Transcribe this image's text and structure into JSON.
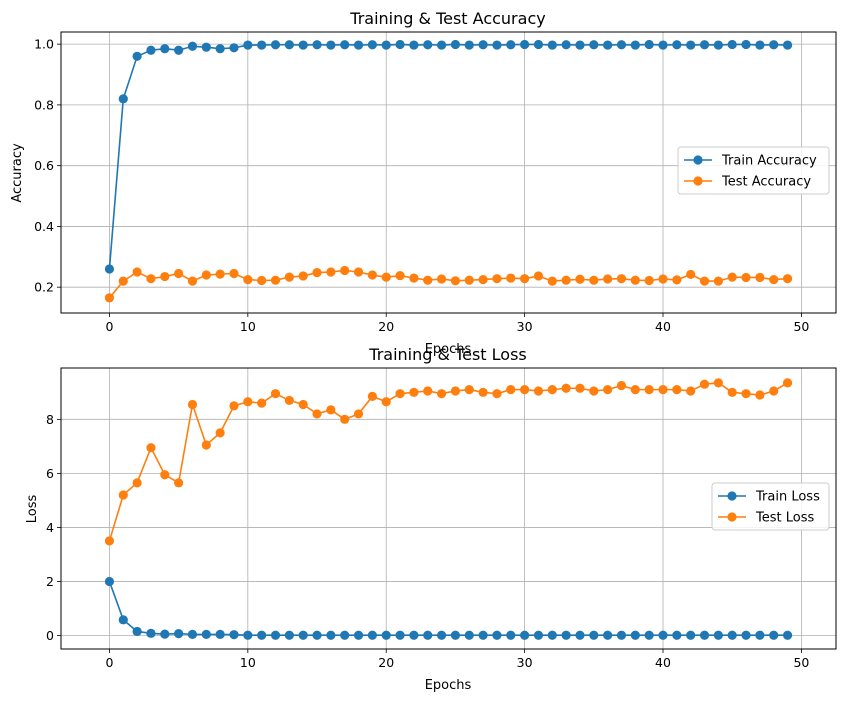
{
  "chart_data": [
    {
      "type": "line",
      "title": "Training & Test Accuracy",
      "xlabel": "Epochs",
      "ylabel": "Accuracy",
      "xlim": [
        -3.5,
        52.5
      ],
      "ylim": [
        0.115,
        1.04
      ],
      "xticks": [
        0,
        10,
        20,
        30,
        40,
        50
      ],
      "yticks": [
        0.2,
        0.4,
        0.6,
        0.8,
        1.0
      ],
      "ytick_labels": [
        "0.2",
        "0.4",
        "0.6",
        "0.8",
        "1.0"
      ],
      "grid": true,
      "legend_position": "center-right",
      "series": [
        {
          "name": "Train Accuracy",
          "color": "#1f77b4",
          "x": [
            0,
            1,
            2,
            3,
            4,
            5,
            6,
            7,
            8,
            9,
            10,
            11,
            12,
            13,
            14,
            15,
            16,
            17,
            18,
            19,
            20,
            21,
            22,
            23,
            24,
            25,
            26,
            27,
            28,
            29,
            30,
            31,
            32,
            33,
            34,
            35,
            36,
            37,
            38,
            39,
            40,
            41,
            42,
            43,
            44,
            45,
            46,
            47,
            48,
            49
          ],
          "values": [
            0.26,
            0.82,
            0.96,
            0.98,
            0.985,
            0.98,
            0.993,
            0.99,
            0.985,
            0.988,
            0.997,
            0.997,
            0.998,
            0.998,
            0.997,
            0.998,
            0.997,
            0.998,
            0.997,
            0.998,
            0.997,
            0.999,
            0.997,
            0.998,
            0.997,
            0.999,
            0.997,
            0.998,
            0.997,
            0.998,
            0.999,
            0.999,
            0.997,
            0.998,
            0.997,
            0.998,
            0.997,
            0.998,
            0.997,
            0.999,
            0.997,
            0.998,
            0.997,
            0.998,
            0.997,
            0.999,
            0.999,
            0.997,
            0.998,
            0.997
          ]
        },
        {
          "name": "Test Accuracy",
          "color": "#ff7f0e",
          "x": [
            0,
            1,
            2,
            3,
            4,
            5,
            6,
            7,
            8,
            9,
            10,
            11,
            12,
            13,
            14,
            15,
            16,
            17,
            18,
            19,
            20,
            21,
            22,
            23,
            24,
            25,
            26,
            27,
            28,
            29,
            30,
            31,
            32,
            33,
            34,
            35,
            36,
            37,
            38,
            39,
            40,
            41,
            42,
            43,
            44,
            45,
            46,
            47,
            48,
            49
          ],
          "values": [
            0.165,
            0.22,
            0.25,
            0.228,
            0.235,
            0.245,
            0.22,
            0.24,
            0.243,
            0.245,
            0.225,
            0.222,
            0.223,
            0.233,
            0.237,
            0.248,
            0.25,
            0.255,
            0.25,
            0.24,
            0.233,
            0.238,
            0.23,
            0.223,
            0.227,
            0.221,
            0.223,
            0.225,
            0.228,
            0.23,
            0.228,
            0.237,
            0.22,
            0.223,
            0.226,
            0.223,
            0.227,
            0.228,
            0.223,
            0.222,
            0.227,
            0.224,
            0.242,
            0.22,
            0.22,
            0.233,
            0.232,
            0.232,
            0.225,
            0.228
          ]
        }
      ]
    },
    {
      "type": "line",
      "title": "Training & Test Loss",
      "xlabel": "Epochs",
      "ylabel": "Loss",
      "xlim": [
        -3.5,
        52.5
      ],
      "ylim": [
        -0.5,
        9.9
      ],
      "xticks": [
        0,
        10,
        20,
        30,
        40,
        50
      ],
      "yticks": [
        0,
        2,
        4,
        6,
        8
      ],
      "ytick_labels": [
        "0",
        "2",
        "4",
        "6",
        "8"
      ],
      "grid": true,
      "legend_position": "center-right",
      "series": [
        {
          "name": "Train Loss",
          "color": "#1f77b4",
          "x": [
            0,
            1,
            2,
            3,
            4,
            5,
            6,
            7,
            8,
            9,
            10,
            11,
            12,
            13,
            14,
            15,
            16,
            17,
            18,
            19,
            20,
            21,
            22,
            23,
            24,
            25,
            26,
            27,
            28,
            29,
            30,
            31,
            32,
            33,
            34,
            35,
            36,
            37,
            38,
            39,
            40,
            41,
            42,
            43,
            44,
            45,
            46,
            47,
            48,
            49
          ],
          "values": [
            2.0,
            0.58,
            0.15,
            0.08,
            0.05,
            0.07,
            0.04,
            0.04,
            0.04,
            0.03,
            0.01,
            0.01,
            0.01,
            0.01,
            0.01,
            0.01,
            0.01,
            0.01,
            0.01,
            0.01,
            0.01,
            0.01,
            0.01,
            0.01,
            0.01,
            0.01,
            0.01,
            0.01,
            0.01,
            0.01,
            0.01,
            0.01,
            0.01,
            0.01,
            0.01,
            0.01,
            0.01,
            0.01,
            0.01,
            0.01,
            0.01,
            0.01,
            0.01,
            0.01,
            0.01,
            0.01,
            0.01,
            0.01,
            0.01,
            0.01
          ]
        },
        {
          "name": "Test Loss",
          "color": "#ff7f0e",
          "x": [
            0,
            1,
            2,
            3,
            4,
            5,
            6,
            7,
            8,
            9,
            10,
            11,
            12,
            13,
            14,
            15,
            16,
            17,
            18,
            19,
            20,
            21,
            22,
            23,
            24,
            25,
            26,
            27,
            28,
            29,
            30,
            31,
            32,
            33,
            34,
            35,
            36,
            37,
            38,
            39,
            40,
            41,
            42,
            43,
            44,
            45,
            46,
            47,
            48,
            49
          ],
          "values": [
            3.5,
            5.2,
            5.65,
            6.95,
            5.95,
            5.65,
            8.55,
            7.05,
            7.5,
            8.5,
            8.65,
            8.6,
            8.95,
            8.7,
            8.55,
            8.2,
            8.35,
            8.0,
            8.2,
            8.85,
            8.65,
            8.95,
            9.0,
            9.05,
            8.95,
            9.05,
            9.1,
            9.0,
            8.95,
            9.1,
            9.1,
            9.05,
            9.1,
            9.15,
            9.15,
            9.05,
            9.1,
            9.25,
            9.1,
            9.1,
            9.1,
            9.1,
            9.05,
            9.3,
            9.35,
            9.0,
            8.95,
            8.9,
            9.05,
            9.35
          ]
        }
      ]
    }
  ]
}
